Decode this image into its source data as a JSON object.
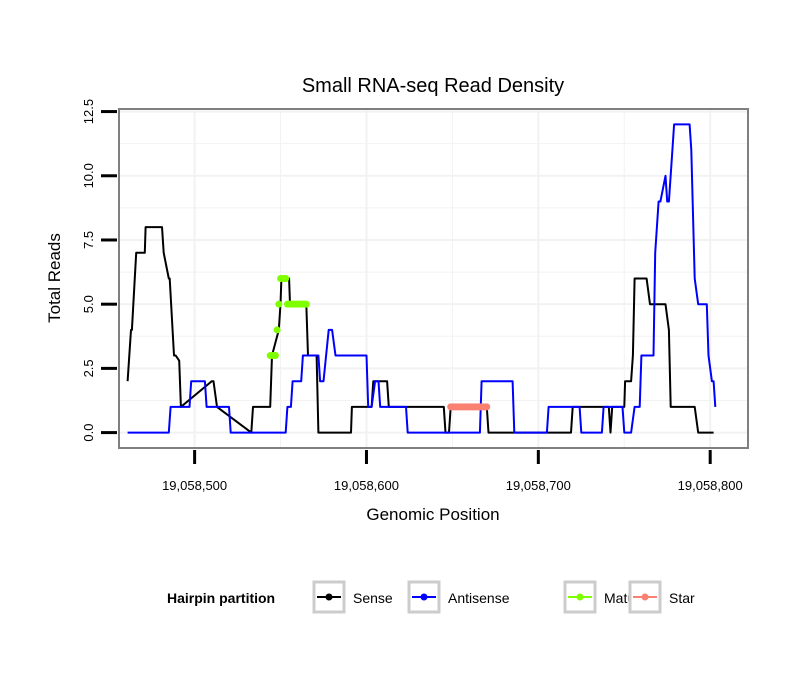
{
  "chart_data": {
    "type": "line",
    "title": "Small RNA-seq Read Density",
    "xlabel": "Genomic Position",
    "ylabel": "Total Reads",
    "xlim": [
      19058456,
      19058822
    ],
    "ylim": [
      -0.6,
      12.6
    ],
    "xticks": [
      19058500,
      19058600,
      19058700,
      19058800
    ],
    "xtick_labels": [
      "19,058,500",
      "19,058,600",
      "19,058,700",
      "19,058,800"
    ],
    "yticks": [
      0,
      2.5,
      5,
      7.5,
      10,
      12.5
    ],
    "ytick_labels": [
      "0.0",
      "2.5",
      "5.0",
      "7.5",
      "10.0",
      "12.5"
    ],
    "grid": true,
    "legend": {
      "title": "Hairpin partition",
      "position": "bottom",
      "entries": [
        {
          "name": "Sense",
          "color": "#000000"
        },
        {
          "name": "Antisense",
          "color": "#0000ff"
        },
        {
          "name": "Mature",
          "color": "#7fff00"
        },
        {
          "name": "Star",
          "color": "#fa8072"
        }
      ]
    },
    "series": [
      {
        "name": "Sense",
        "color": "#000000",
        "style": "line",
        "x": [
          19058461,
          19058463,
          19058463.5,
          19058466,
          19058466.5,
          19058471,
          19058471.5,
          19058481,
          19058482,
          19058485,
          19058485.5,
          19058488,
          19058489,
          19058491,
          19058492,
          19058510,
          19058511,
          19058513,
          19058533,
          19058534,
          19058544,
          19058545,
          19058549,
          19058550,
          19058550.5,
          19058555,
          19058555.5,
          19058565,
          19058566,
          19058571,
          19058572,
          19058591,
          19058591.5,
          19058603,
          19058604,
          19058612,
          19058613,
          19058645,
          19058646,
          19058648,
          19058649,
          19058670,
          19058671,
          19058719,
          19058720,
          19058741,
          19058742,
          19058743,
          19058750,
          19058750.5,
          19058754,
          19058755,
          19058756,
          19058763,
          19058765,
          19058774,
          19058776,
          19058777,
          19058791,
          19058793,
          19058802
        ],
        "y": [
          2,
          4,
          4,
          7,
          7,
          7,
          8,
          8,
          7,
          6,
          6,
          3,
          3,
          2.8,
          1,
          2,
          2,
          1,
          0,
          1,
          1,
          3,
          4,
          5,
          6,
          6,
          5,
          5,
          3,
          3,
          0,
          0,
          1,
          1,
          2,
          2,
          1,
          1,
          0,
          0,
          1,
          1,
          0,
          0,
          1,
          1,
          0,
          1,
          1,
          2,
          2,
          3,
          6,
          6,
          5,
          5,
          4,
          1,
          1,
          0,
          0
        ]
      },
      {
        "name": "Antisense",
        "color": "#0000ff",
        "style": "line",
        "x": [
          19058461,
          19058485,
          19058486,
          19058497,
          19058498,
          19058506,
          19058507,
          19058520,
          19058521,
          19058553,
          19058554,
          19058556,
          19058557,
          19058562,
          19058563,
          19058572,
          19058573,
          19058575,
          19058578,
          19058580,
          19058582,
          19058586,
          19058587,
          19058600,
          19058601,
          19058603,
          19058605,
          19058607,
          19058608,
          19058623,
          19058624,
          19058645,
          19058646,
          19058666,
          19058667,
          19058685,
          19058686,
          19058705,
          19058706,
          19058724,
          19058725,
          19058737,
          19058738,
          19058749,
          19058750,
          19058754,
          19058756,
          19058759,
          19058760,
          19058767,
          19058768,
          19058770,
          19058771,
          19058774,
          19058775,
          19058776,
          19058778,
          19058779,
          19058780,
          19058788,
          19058789,
          19058791,
          19058793,
          19058798,
          19058799,
          19058801,
          19058802,
          19058803
        ],
        "y": [
          0,
          0,
          1,
          1,
          2,
          2,
          1,
          1,
          0,
          0,
          1,
          1,
          2,
          2,
          3,
          3,
          2,
          2,
          4,
          4,
          3,
          3,
          3,
          3,
          1,
          1,
          2,
          2,
          1,
          1,
          0,
          0,
          0,
          0,
          2,
          2,
          0,
          0,
          1,
          1,
          0,
          0,
          1,
          1,
          0,
          0,
          1,
          1,
          3,
          3,
          7,
          9,
          9,
          10,
          9,
          9,
          11,
          12,
          12,
          12,
          11,
          6,
          5,
          5,
          3,
          2,
          2,
          1
        ]
      },
      {
        "name": "Mature",
        "color": "#7fff00",
        "style": "points",
        "x": [
          19058544,
          19058545,
          19058546,
          19058547,
          19058548,
          19058549,
          19058550,
          19058551,
          19058552,
          19058553,
          19058554,
          19058555,
          19058556,
          19058557,
          19058558,
          19058559,
          19058560,
          19058561,
          19058562,
          19058563,
          19058564,
          19058565
        ],
        "y": [
          3,
          3,
          3,
          3,
          4,
          5,
          6,
          6,
          6,
          6,
          5,
          5,
          5,
          5,
          5,
          5,
          5,
          5,
          5,
          5,
          5,
          5
        ]
      },
      {
        "name": "Star",
        "color": "#fa8072",
        "style": "points",
        "x": [
          19058649,
          19058650,
          19058651,
          19058652,
          19058653,
          19058654,
          19058655,
          19058656,
          19058657,
          19058658,
          19058659,
          19058660,
          19058661,
          19058662,
          19058663,
          19058664,
          19058665,
          19058666,
          19058667,
          19058668,
          19058669,
          19058670
        ],
        "y": [
          1,
          1,
          1,
          1,
          1,
          1,
          1,
          1,
          1,
          1,
          1,
          1,
          1,
          1,
          1,
          1,
          1,
          1,
          1,
          1,
          1,
          1
        ]
      }
    ]
  }
}
